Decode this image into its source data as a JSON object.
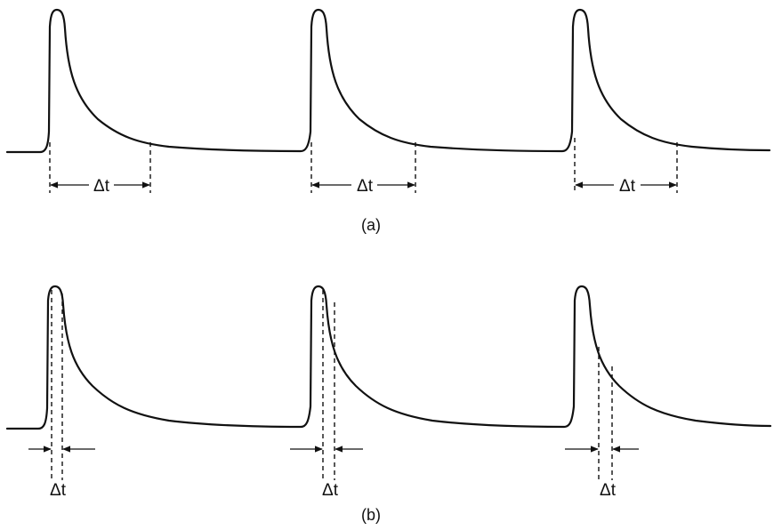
{
  "panels": [
    {
      "caption": "(a)",
      "interval_label": "Δt",
      "pulses": [
        {
          "label": "Δt"
        },
        {
          "label": "Δt"
        },
        {
          "label": "Δt"
        }
      ]
    },
    {
      "caption": "(b)",
      "interval_label": "Δt",
      "pulses": [
        {
          "label": "Δt"
        },
        {
          "label": "Δt"
        },
        {
          "label": "Δt"
        }
      ]
    }
  ]
}
